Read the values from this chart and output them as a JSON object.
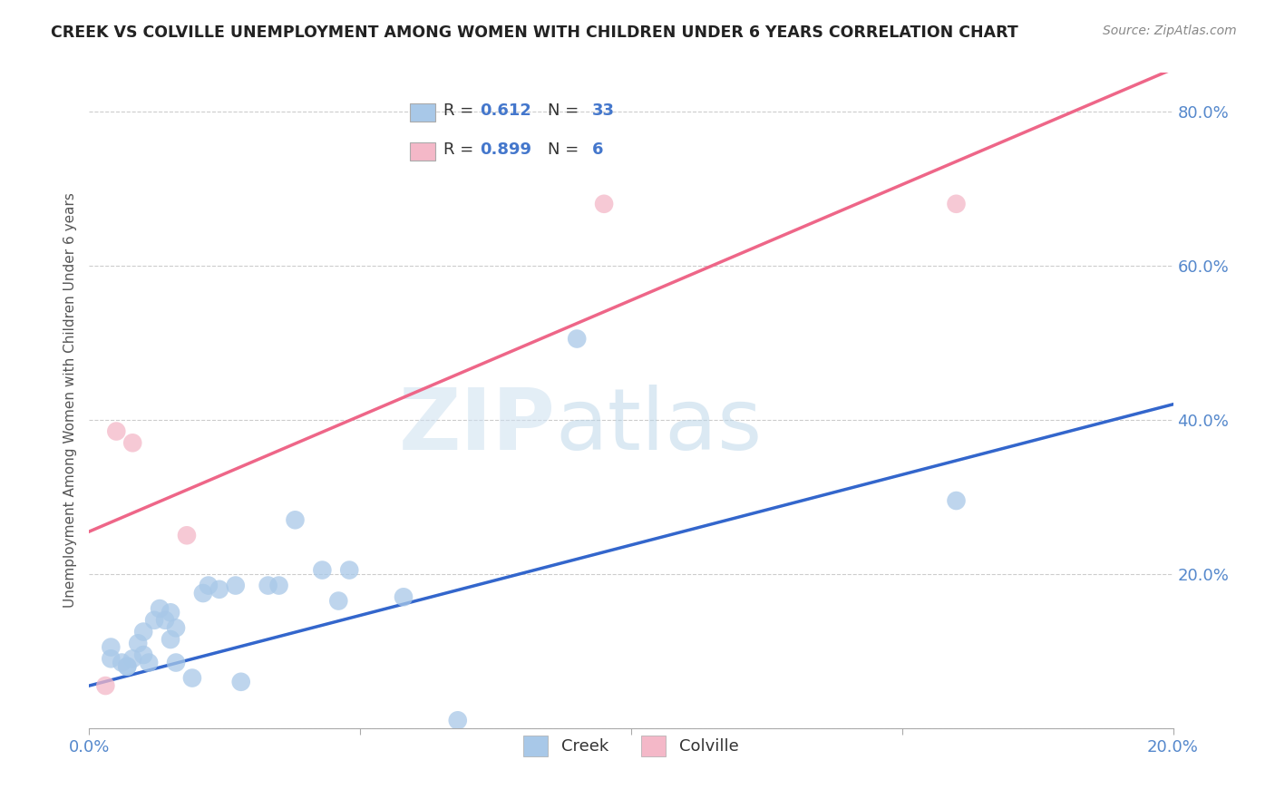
{
  "title": "CREEK VS COLVILLE UNEMPLOYMENT AMONG WOMEN WITH CHILDREN UNDER 6 YEARS CORRELATION CHART",
  "source": "Source: ZipAtlas.com",
  "ylabel": "Unemployment Among Women with Children Under 6 years",
  "xlim": [
    0.0,
    0.2
  ],
  "ylim": [
    0.0,
    0.85
  ],
  "xticks": [
    0.0,
    0.05,
    0.1,
    0.15,
    0.2
  ],
  "xtick_labels": [
    "0.0%",
    "",
    "",
    "",
    "20.0%"
  ],
  "yticks": [
    0.0,
    0.2,
    0.4,
    0.6,
    0.8
  ],
  "ytick_labels": [
    "",
    "20.0%",
    "40.0%",
    "60.0%",
    "80.0%"
  ],
  "creek_R": 0.612,
  "creek_N": 33,
  "colville_R": 0.899,
  "colville_N": 6,
  "creek_color": "#a8c8e8",
  "colville_color": "#f4b8c8",
  "creek_line_color": "#3366cc",
  "colville_line_color": "#ee6688",
  "creek_points": [
    [
      0.004,
      0.09
    ],
    [
      0.004,
      0.105
    ],
    [
      0.006,
      0.085
    ],
    [
      0.007,
      0.08
    ],
    [
      0.007,
      0.08
    ],
    [
      0.008,
      0.09
    ],
    [
      0.009,
      0.11
    ],
    [
      0.01,
      0.095
    ],
    [
      0.01,
      0.125
    ],
    [
      0.011,
      0.085
    ],
    [
      0.012,
      0.14
    ],
    [
      0.013,
      0.155
    ],
    [
      0.014,
      0.14
    ],
    [
      0.015,
      0.15
    ],
    [
      0.015,
      0.115
    ],
    [
      0.016,
      0.13
    ],
    [
      0.016,
      0.085
    ],
    [
      0.019,
      0.065
    ],
    [
      0.021,
      0.175
    ],
    [
      0.022,
      0.185
    ],
    [
      0.024,
      0.18
    ],
    [
      0.027,
      0.185
    ],
    [
      0.028,
      0.06
    ],
    [
      0.033,
      0.185
    ],
    [
      0.035,
      0.185
    ],
    [
      0.038,
      0.27
    ],
    [
      0.043,
      0.205
    ],
    [
      0.046,
      0.165
    ],
    [
      0.048,
      0.205
    ],
    [
      0.058,
      0.17
    ],
    [
      0.068,
      0.01
    ],
    [
      0.09,
      0.505
    ],
    [
      0.16,
      0.295
    ]
  ],
  "colville_points": [
    [
      0.003,
      0.055
    ],
    [
      0.005,
      0.385
    ],
    [
      0.008,
      0.37
    ],
    [
      0.018,
      0.25
    ],
    [
      0.095,
      0.68
    ],
    [
      0.16,
      0.68
    ]
  ],
  "creek_line": [
    0.0,
    0.2,
    0.055,
    0.42
  ],
  "colville_line": [
    0.0,
    0.2,
    0.255,
    0.855
  ],
  "watermark_zip": "ZIP",
  "watermark_atlas": "atlas",
  "background_color": "#ffffff",
  "grid_color": "#cccccc",
  "tick_color": "#5588cc",
  "legend_creek_text": [
    "R = ",
    "0.612",
    "   N = ",
    "33"
  ],
  "legend_colville_text": [
    "R = ",
    "0.899",
    "   N =  ",
    "6"
  ],
  "bottom_legend": [
    "Creek",
    "Colville"
  ]
}
